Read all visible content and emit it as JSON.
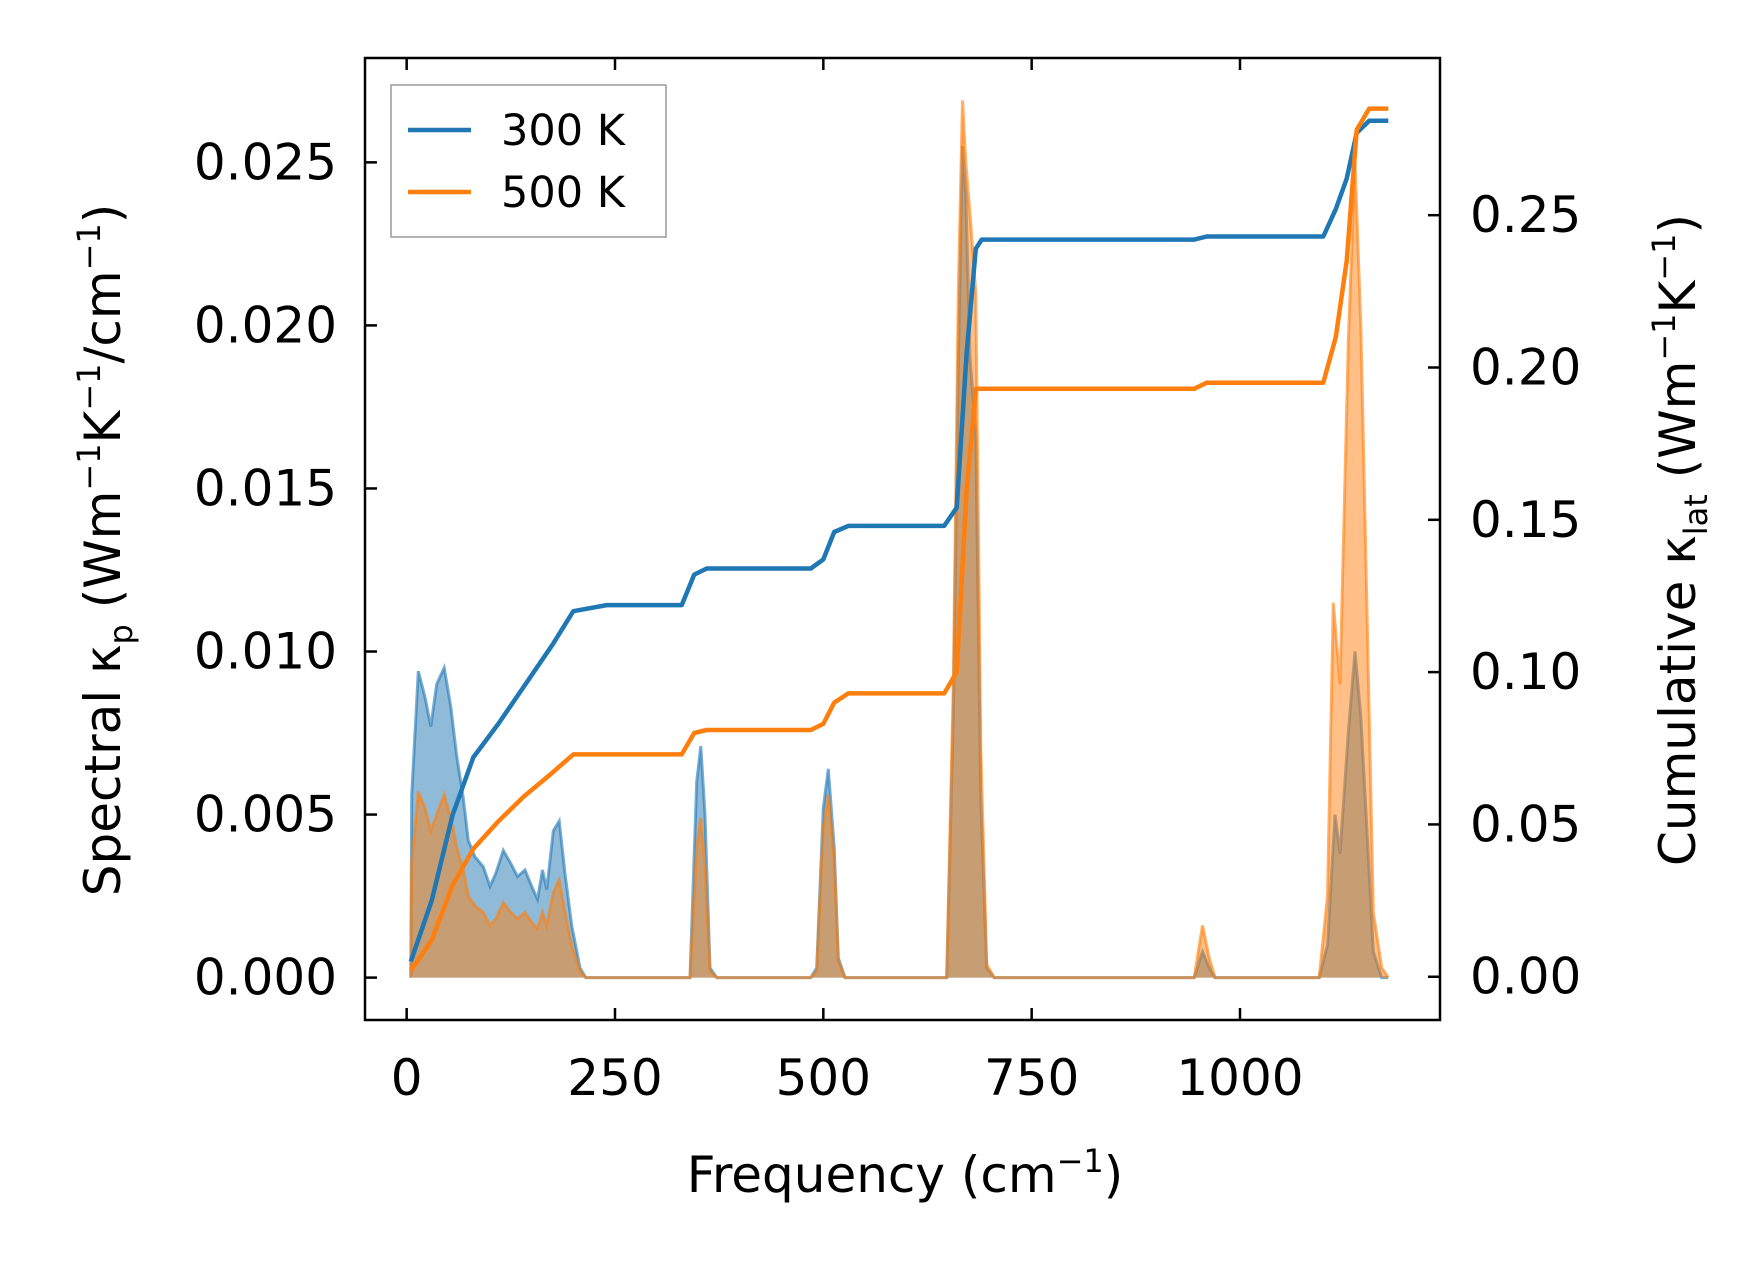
{
  "chart_data": {
    "type": "line",
    "title": "",
    "xlabel": {
      "text": "Frequency (cm",
      "sup": "−1",
      "tail": ")"
    },
    "ylabel_left": {
      "a": "Spectral κ",
      "sub": "p",
      "b": " (Wm",
      "sup1": "−1",
      "c": "K",
      "sup2": "−1",
      "d": "/cm",
      "sup3": "−1",
      "e": ")"
    },
    "ylabel_right": {
      "a": "Cumulative κ",
      "sub": "lat",
      "b": " (Wm",
      "sup1": "−1",
      "c": "K",
      "sup2": "−1",
      "d": ")"
    },
    "xlim": [
      -50,
      1240
    ],
    "ylim_left": [
      -0.0013,
      0.0282
    ],
    "ylim_right": [
      -0.0142,
      0.3016
    ],
    "x_ticks": [
      0,
      250,
      500,
      750,
      1000
    ],
    "x_tick_labels": [
      "0",
      "250",
      "500",
      "750",
      "1000"
    ],
    "y_left_ticks": [
      0,
      0.005,
      0.01,
      0.015,
      0.02,
      0.025
    ],
    "y_left_tick_labels": [
      "0.000",
      "0.005",
      "0.010",
      "0.015",
      "0.020",
      "0.025"
    ],
    "y_right_ticks": [
      0,
      0.05,
      0.1,
      0.15,
      0.2,
      0.25
    ],
    "y_right_tick_labels": [
      "0.00",
      "0.05",
      "0.10",
      "0.15",
      "0.20",
      "0.25"
    ],
    "legend_position": "top-left",
    "series": [
      {
        "name": "300 K",
        "color": "#1f77b4",
        "spectral": [
          [
            5,
            0
          ],
          [
            6,
            0.0056
          ],
          [
            14,
            0.0094
          ],
          [
            22,
            0.0086
          ],
          [
            29,
            0.0077
          ],
          [
            36,
            0.009
          ],
          [
            45,
            0.0095
          ],
          [
            53,
            0.0083
          ],
          [
            60,
            0.0068
          ],
          [
            68,
            0.0055
          ],
          [
            74,
            0.0042
          ],
          [
            82,
            0.0037
          ],
          [
            92,
            0.0034
          ],
          [
            100,
            0.0028
          ],
          [
            107,
            0.0032
          ],
          [
            116,
            0.0039
          ],
          [
            125,
            0.0035
          ],
          [
            133,
            0.0031
          ],
          [
            142,
            0.0033
          ],
          [
            150,
            0.0028
          ],
          [
            157,
            0.0024
          ],
          [
            163,
            0.0033
          ],
          [
            168,
            0.0027
          ],
          [
            176,
            0.0045
          ],
          [
            183,
            0.0048
          ],
          [
            190,
            0.0032
          ],
          [
            198,
            0.0016
          ],
          [
            208,
            0.0003
          ],
          [
            215,
            0
          ],
          [
            330,
            0
          ],
          [
            340,
            0
          ],
          [
            348,
            0.006
          ],
          [
            353,
            0.0071
          ],
          [
            358,
            0.005
          ],
          [
            364,
            0.0003
          ],
          [
            372,
            0
          ],
          [
            485,
            0
          ],
          [
            492,
            0.0003
          ],
          [
            500,
            0.0052
          ],
          [
            506,
            0.0064
          ],
          [
            513,
            0.004
          ],
          [
            518,
            0.0006
          ],
          [
            526,
            0
          ],
          [
            640,
            0
          ],
          [
            648,
            0
          ],
          [
            656,
            0.008
          ],
          [
            662,
            0.0188
          ],
          [
            667,
            0.0255
          ],
          [
            671,
            0.024
          ],
          [
            676,
            0.019
          ],
          [
            683,
            0.0167
          ],
          [
            689,
            0.0055
          ],
          [
            696,
            0.0003
          ],
          [
            705,
            0
          ],
          [
            945,
            0
          ],
          [
            955,
            0.0008
          ],
          [
            963,
            0.0003
          ],
          [
            970,
            0
          ],
          [
            1095,
            0
          ],
          [
            1105,
            0.001
          ],
          [
            1114,
            0.005
          ],
          [
            1120,
            0.0038
          ],
          [
            1130,
            0.0075
          ],
          [
            1138,
            0.01
          ],
          [
            1145,
            0.008
          ],
          [
            1153,
            0.0042
          ],
          [
            1160,
            0.0008
          ],
          [
            1170,
            0
          ],
          [
            1178,
            0
          ]
        ],
        "cumulative": [
          [
            5,
            0.005
          ],
          [
            30,
            0.025
          ],
          [
            55,
            0.053
          ],
          [
            80,
            0.072
          ],
          [
            110,
            0.083
          ],
          [
            140,
            0.095
          ],
          [
            175,
            0.109
          ],
          [
            200,
            0.12
          ],
          [
            240,
            0.122
          ],
          [
            300,
            0.122
          ],
          [
            330,
            0.122
          ],
          [
            345,
            0.132
          ],
          [
            360,
            0.134
          ],
          [
            450,
            0.134
          ],
          [
            485,
            0.134
          ],
          [
            500,
            0.137
          ],
          [
            513,
            0.146
          ],
          [
            530,
            0.148
          ],
          [
            600,
            0.148
          ],
          [
            645,
            0.148
          ],
          [
            660,
            0.154
          ],
          [
            672,
            0.205
          ],
          [
            683,
            0.239
          ],
          [
            690,
            0.242
          ],
          [
            800,
            0.242
          ],
          [
            945,
            0.242
          ],
          [
            960,
            0.243
          ],
          [
            990,
            0.243
          ],
          [
            1100,
            0.243
          ],
          [
            1115,
            0.252
          ],
          [
            1128,
            0.262
          ],
          [
            1140,
            0.277
          ],
          [
            1155,
            0.281
          ],
          [
            1178,
            0.281
          ]
        ]
      },
      {
        "name": "500 K",
        "color": "#ff7f0e",
        "spectral": [
          [
            5,
            0
          ],
          [
            6,
            0.0035
          ],
          [
            14,
            0.0057
          ],
          [
            22,
            0.0052
          ],
          [
            29,
            0.0045
          ],
          [
            36,
            0.005
          ],
          [
            45,
            0.0056
          ],
          [
            53,
            0.0049
          ],
          [
            60,
            0.004
          ],
          [
            68,
            0.0033
          ],
          [
            74,
            0.0025
          ],
          [
            82,
            0.0022
          ],
          [
            92,
            0.002
          ],
          [
            100,
            0.0016
          ],
          [
            107,
            0.0018
          ],
          [
            116,
            0.0023
          ],
          [
            125,
            0.002
          ],
          [
            133,
            0.0018
          ],
          [
            142,
            0.002
          ],
          [
            150,
            0.0017
          ],
          [
            157,
            0.0015
          ],
          [
            163,
            0.002
          ],
          [
            168,
            0.0016
          ],
          [
            176,
            0.0026
          ],
          [
            183,
            0.003
          ],
          [
            190,
            0.002
          ],
          [
            198,
            0.001
          ],
          [
            208,
            0.0002
          ],
          [
            215,
            0
          ],
          [
            330,
            0
          ],
          [
            340,
            0
          ],
          [
            348,
            0.004
          ],
          [
            353,
            0.0049
          ],
          [
            358,
            0.0034
          ],
          [
            364,
            0.0002
          ],
          [
            372,
            0
          ],
          [
            485,
            0
          ],
          [
            492,
            0.0002
          ],
          [
            500,
            0.0046
          ],
          [
            506,
            0.0056
          ],
          [
            513,
            0.0036
          ],
          [
            518,
            0.0005
          ],
          [
            526,
            0
          ],
          [
            640,
            0
          ],
          [
            648,
            0
          ],
          [
            656,
            0.009
          ],
          [
            662,
            0.021
          ],
          [
            667,
            0.0269
          ],
          [
            671,
            0.025
          ],
          [
            676,
            0.0234
          ],
          [
            683,
            0.021
          ],
          [
            689,
            0.007
          ],
          [
            696,
            0.0004
          ],
          [
            705,
            0
          ],
          [
            945,
            0
          ],
          [
            955,
            0.0016
          ],
          [
            963,
            0.0006
          ],
          [
            970,
            0
          ],
          [
            1095,
            0
          ],
          [
            1105,
            0.0025
          ],
          [
            1112,
            0.0115
          ],
          [
            1120,
            0.009
          ],
          [
            1130,
            0.0195
          ],
          [
            1138,
            0.025
          ],
          [
            1145,
            0.02
          ],
          [
            1153,
            0.0105
          ],
          [
            1160,
            0.002
          ],
          [
            1170,
            0.0003
          ],
          [
            1178,
            0
          ]
        ],
        "cumulative": [
          [
            5,
            0.002
          ],
          [
            30,
            0.012
          ],
          [
            55,
            0.03
          ],
          [
            80,
            0.042
          ],
          [
            110,
            0.051
          ],
          [
            140,
            0.059
          ],
          [
            175,
            0.067
          ],
          [
            200,
            0.073
          ],
          [
            240,
            0.073
          ],
          [
            300,
            0.073
          ],
          [
            330,
            0.073
          ],
          [
            345,
            0.08
          ],
          [
            360,
            0.081
          ],
          [
            450,
            0.081
          ],
          [
            485,
            0.081
          ],
          [
            500,
            0.083
          ],
          [
            513,
            0.09
          ],
          [
            530,
            0.093
          ],
          [
            600,
            0.093
          ],
          [
            645,
            0.093
          ],
          [
            660,
            0.1
          ],
          [
            672,
            0.16
          ],
          [
            683,
            0.193
          ],
          [
            690,
            0.193
          ],
          [
            800,
            0.193
          ],
          [
            945,
            0.193
          ],
          [
            960,
            0.195
          ],
          [
            990,
            0.195
          ],
          [
            1100,
            0.195
          ],
          [
            1115,
            0.21
          ],
          [
            1128,
            0.235
          ],
          [
            1140,
            0.278
          ],
          [
            1155,
            0.285
          ],
          [
            1178,
            0.285
          ]
        ]
      }
    ]
  }
}
